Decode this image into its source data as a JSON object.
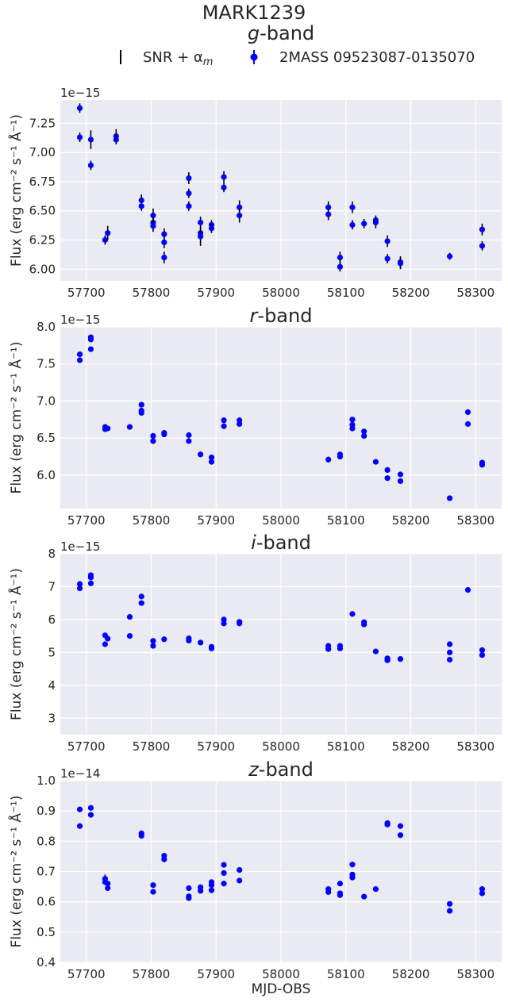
{
  "figure": {
    "title": "MARK1239",
    "xlabel": "MJD-OBS",
    "legend": [
      {
        "label": "SNR + αm",
        "label_main": "SNR + α",
        "label_sub": "m",
        "style": "errorbar-black"
      },
      {
        "label": "2MASS 09523087-0135070",
        "style": "dot-blue"
      }
    ],
    "colors": {
      "data": "#0000ff",
      "error": "#000000",
      "bg": "#eaeaf2",
      "grid": "#ffffff"
    }
  },
  "chart_data": [
    {
      "type": "scatter",
      "title": "g-band",
      "title_italic": "g",
      "title_rest": "-band",
      "ylabel": "Flux (erg cm⁻² s⁻¹ Å⁻¹)",
      "scale": "1e−15",
      "xlim": [
        57660,
        58340
      ],
      "ylim": [
        5.9,
        7.45
      ],
      "yticks": [
        "6.00",
        "6.25",
        "6.50",
        "6.75",
        "7.00",
        "7.25"
      ],
      "xticks": [
        "57700",
        "57800",
        "57900",
        "58000",
        "58100",
        "58200",
        "58300"
      ],
      "points": [
        [
          57690,
          7.38,
          0.04
        ],
        [
          57690,
          7.13,
          0.04
        ],
        [
          57707,
          7.11,
          0.08
        ],
        [
          57707,
          6.89,
          0.04
        ],
        [
          57746,
          7.14,
          0.06
        ],
        [
          57746,
          7.11,
          0.04
        ],
        [
          57729,
          6.25,
          0.04
        ],
        [
          57733,
          6.31,
          0.06
        ],
        [
          57785,
          6.59,
          0.05
        ],
        [
          57785,
          6.54,
          0.04
        ],
        [
          57803,
          6.46,
          0.06
        ],
        [
          57803,
          6.4,
          0.05
        ],
        [
          57803,
          6.37,
          0.05
        ],
        [
          57820,
          6.3,
          0.05
        ],
        [
          57820,
          6.23,
          0.05
        ],
        [
          57820,
          6.1,
          0.05
        ],
        [
          57858,
          6.78,
          0.05
        ],
        [
          57858,
          6.65,
          0.04
        ],
        [
          57858,
          6.54,
          0.04
        ],
        [
          57876,
          6.4,
          0.05
        ],
        [
          57876,
          6.31,
          0.04
        ],
        [
          57876,
          6.28,
          0.08
        ],
        [
          57893,
          6.38,
          0.04
        ],
        [
          57893,
          6.35,
          0.04
        ],
        [
          57912,
          6.79,
          0.05
        ],
        [
          57912,
          6.7,
          0.04
        ],
        [
          57936,
          6.53,
          0.06
        ],
        [
          57936,
          6.46,
          0.06
        ],
        [
          58073,
          6.53,
          0.05
        ],
        [
          58073,
          6.47,
          0.05
        ],
        [
          58091,
          6.1,
          0.05
        ],
        [
          58091,
          6.02,
          0.04
        ],
        [
          58110,
          6.53,
          0.05
        ],
        [
          58110,
          6.38,
          0.04
        ],
        [
          58128,
          6.39,
          0.04
        ],
        [
          58146,
          6.42,
          0.04
        ],
        [
          58146,
          6.4,
          0.05
        ],
        [
          58164,
          6.24,
          0.05
        ],
        [
          58164,
          6.09,
          0.04
        ],
        [
          58184,
          6.06,
          0.05
        ],
        [
          58184,
          6.05,
          0.05
        ],
        [
          58260,
          6.11,
          0.03
        ],
        [
          58310,
          6.34,
          0.05
        ],
        [
          58310,
          6.2,
          0.04
        ]
      ]
    },
    {
      "type": "scatter",
      "title": "r-band",
      "title_italic": "r",
      "title_rest": "-band",
      "ylabel": "Flux (erg cm⁻² s⁻¹ Å⁻¹)",
      "scale": "1e−15",
      "xlim": [
        57660,
        58340
      ],
      "ylim": [
        5.55,
        8.0
      ],
      "yticks": [
        "6.0",
        "6.5",
        "7.0",
        "7.5",
        "8.0"
      ],
      "xticks": [
        "57700",
        "57800",
        "57900",
        "58000",
        "58100",
        "58200",
        "58300"
      ],
      "points": [
        [
          57690,
          7.63,
          0.02
        ],
        [
          57690,
          7.55,
          0.02
        ],
        [
          57707,
          7.86,
          0.02
        ],
        [
          57707,
          7.83,
          0.02
        ],
        [
          57707,
          7.7,
          0.02
        ],
        [
          57729,
          6.65,
          0.02
        ],
        [
          57729,
          6.62,
          0.02
        ],
        [
          57733,
          6.63,
          0.02
        ],
        [
          57767,
          6.65,
          0.02
        ],
        [
          57785,
          6.95,
          0.02
        ],
        [
          57785,
          6.87,
          0.02
        ],
        [
          57785,
          6.84,
          0.02
        ],
        [
          57803,
          6.53,
          0.02
        ],
        [
          57803,
          6.46,
          0.02
        ],
        [
          57820,
          6.57,
          0.02
        ],
        [
          57820,
          6.55,
          0.02
        ],
        [
          57858,
          6.54,
          0.02
        ],
        [
          57858,
          6.46,
          0.02
        ],
        [
          57876,
          6.28,
          0.02
        ],
        [
          57893,
          6.24,
          0.02
        ],
        [
          57893,
          6.18,
          0.02
        ],
        [
          57912,
          6.74,
          0.02
        ],
        [
          57912,
          6.66,
          0.02
        ],
        [
          57936,
          6.74,
          0.02
        ],
        [
          57936,
          6.69,
          0.02
        ],
        [
          58073,
          6.21,
          0.04
        ],
        [
          58091,
          6.28,
          0.02
        ],
        [
          58091,
          6.25,
          0.02
        ],
        [
          58110,
          6.75,
          0.02
        ],
        [
          58110,
          6.68,
          0.02
        ],
        [
          58110,
          6.63,
          0.02
        ],
        [
          58128,
          6.59,
          0.02
        ],
        [
          58128,
          6.53,
          0.02
        ],
        [
          58146,
          6.18,
          0.02
        ],
        [
          58164,
          6.07,
          0.02
        ],
        [
          58164,
          5.96,
          0.02
        ],
        [
          58184,
          6.01,
          0.02
        ],
        [
          58184,
          5.92,
          0.02
        ],
        [
          58260,
          5.69,
          0.02
        ],
        [
          58288,
          6.85,
          0.02
        ],
        [
          58288,
          6.69,
          0.02
        ],
        [
          58310,
          6.17,
          0.02
        ],
        [
          58310,
          6.14,
          0.02
        ]
      ]
    },
    {
      "type": "scatter",
      "title": "i-band",
      "title_italic": "i",
      "title_rest": "-band",
      "ylabel": "Flux (erg cm⁻² s⁻¹ Å⁻¹)",
      "scale": "1e−15",
      "xlim": [
        57660,
        58340
      ],
      "ylim": [
        2.5,
        8.0
      ],
      "yticks": [
        "3",
        "4",
        "5",
        "6",
        "7",
        "8"
      ],
      "xticks": [
        "57700",
        "57800",
        "57900",
        "58000",
        "58100",
        "58200",
        "58300"
      ],
      "points": [
        [
          57690,
          7.08,
          0.03
        ],
        [
          57690,
          6.95,
          0.03
        ],
        [
          57707,
          7.35,
          0.03
        ],
        [
          57707,
          7.28,
          0.03
        ],
        [
          57707,
          7.1,
          0.03
        ],
        [
          57729,
          5.52,
          0.03
        ],
        [
          57729,
          5.25,
          0.03
        ],
        [
          57733,
          5.42,
          0.03
        ],
        [
          57767,
          6.08,
          0.03
        ],
        [
          57767,
          5.5,
          0.03
        ],
        [
          57785,
          6.7,
          0.03
        ],
        [
          57785,
          6.5,
          0.03
        ],
        [
          57803,
          5.35,
          0.03
        ],
        [
          57803,
          5.2,
          0.03
        ],
        [
          57820,
          5.4,
          0.03
        ],
        [
          57858,
          5.43,
          0.03
        ],
        [
          57858,
          5.36,
          0.03
        ],
        [
          57876,
          5.3,
          0.03
        ],
        [
          57893,
          5.17,
          0.03
        ],
        [
          57893,
          5.12,
          0.03
        ],
        [
          57912,
          6.0,
          0.03
        ],
        [
          57912,
          5.88,
          0.03
        ],
        [
          57936,
          5.93,
          0.03
        ],
        [
          57936,
          5.88,
          0.03
        ],
        [
          58073,
          5.2,
          0.03
        ],
        [
          58073,
          5.1,
          0.03
        ],
        [
          58091,
          5.2,
          0.03
        ],
        [
          58091,
          5.12,
          0.03
        ],
        [
          58110,
          6.17,
          0.03
        ],
        [
          58128,
          5.92,
          0.03
        ],
        [
          58128,
          5.85,
          0.03
        ],
        [
          58146,
          5.03,
          0.03
        ],
        [
          58164,
          4.82,
          0.03
        ],
        [
          58164,
          4.76,
          0.03
        ],
        [
          58184,
          4.8,
          0.03
        ],
        [
          58260,
          5.25,
          0.03
        ],
        [
          58260,
          5.0,
          0.03
        ],
        [
          58260,
          4.78,
          0.03
        ],
        [
          58288,
          6.9,
          0.03
        ],
        [
          58310,
          5.07,
          0.03
        ],
        [
          58310,
          4.92,
          0.03
        ]
      ]
    },
    {
      "type": "scatter",
      "title": "z-band",
      "title_italic": "z",
      "title_rest": "-band",
      "ylabel": "Flux (erg cm⁻² s⁻¹ Å⁻¹)",
      "scale": "1e−14",
      "xlim": [
        57660,
        58340
      ],
      "ylim": [
        0.4,
        1.0
      ],
      "yticks": [
        "0.4",
        "0.5",
        "0.6",
        "0.7",
        "0.8",
        "0.9",
        "1.0"
      ],
      "xticks": [
        "57700",
        "57800",
        "57900",
        "58000",
        "58100",
        "58200",
        "58300"
      ],
      "points": [
        [
          57690,
          0.905,
          0.006
        ],
        [
          57690,
          0.85,
          0.005
        ],
        [
          57707,
          0.91,
          0.006
        ],
        [
          57707,
          0.887,
          0.005
        ],
        [
          57729,
          0.676,
          0.014
        ],
        [
          57729,
          0.665,
          0.008
        ],
        [
          57733,
          0.66,
          0.008
        ],
        [
          57733,
          0.645,
          0.006
        ],
        [
          57785,
          0.826,
          0.008
        ],
        [
          57785,
          0.818,
          0.006
        ],
        [
          57803,
          0.655,
          0.005
        ],
        [
          57803,
          0.633,
          0.005
        ],
        [
          57820,
          0.752,
          0.006
        ],
        [
          57820,
          0.74,
          0.005
        ],
        [
          57858,
          0.645,
          0.005
        ],
        [
          57858,
          0.618,
          0.006
        ],
        [
          57858,
          0.612,
          0.005
        ],
        [
          57876,
          0.648,
          0.005
        ],
        [
          57876,
          0.636,
          0.005
        ],
        [
          57893,
          0.665,
          0.005
        ],
        [
          57893,
          0.655,
          0.005
        ],
        [
          57893,
          0.638,
          0.005
        ],
        [
          57912,
          0.722,
          0.006
        ],
        [
          57912,
          0.695,
          0.005
        ],
        [
          57912,
          0.66,
          0.005
        ],
        [
          57936,
          0.705,
          0.008
        ],
        [
          57936,
          0.67,
          0.005
        ],
        [
          58073,
          0.642,
          0.006
        ],
        [
          58073,
          0.632,
          0.005
        ],
        [
          58091,
          0.66,
          0.005
        ],
        [
          58091,
          0.628,
          0.005
        ],
        [
          58091,
          0.622,
          0.005
        ],
        [
          58110,
          0.723,
          0.009
        ],
        [
          58110,
          0.69,
          0.006
        ],
        [
          58110,
          0.68,
          0.005
        ],
        [
          58128,
          0.617,
          0.006
        ],
        [
          58146,
          0.642,
          0.006
        ],
        [
          58164,
          0.86,
          0.006
        ],
        [
          58164,
          0.855,
          0.005
        ],
        [
          58184,
          0.85,
          0.005
        ],
        [
          58184,
          0.82,
          0.005
        ],
        [
          58260,
          0.593,
          0.005
        ],
        [
          58260,
          0.57,
          0.005
        ],
        [
          58310,
          0.642,
          0.005
        ],
        [
          58310,
          0.628,
          0.005
        ]
      ]
    }
  ]
}
